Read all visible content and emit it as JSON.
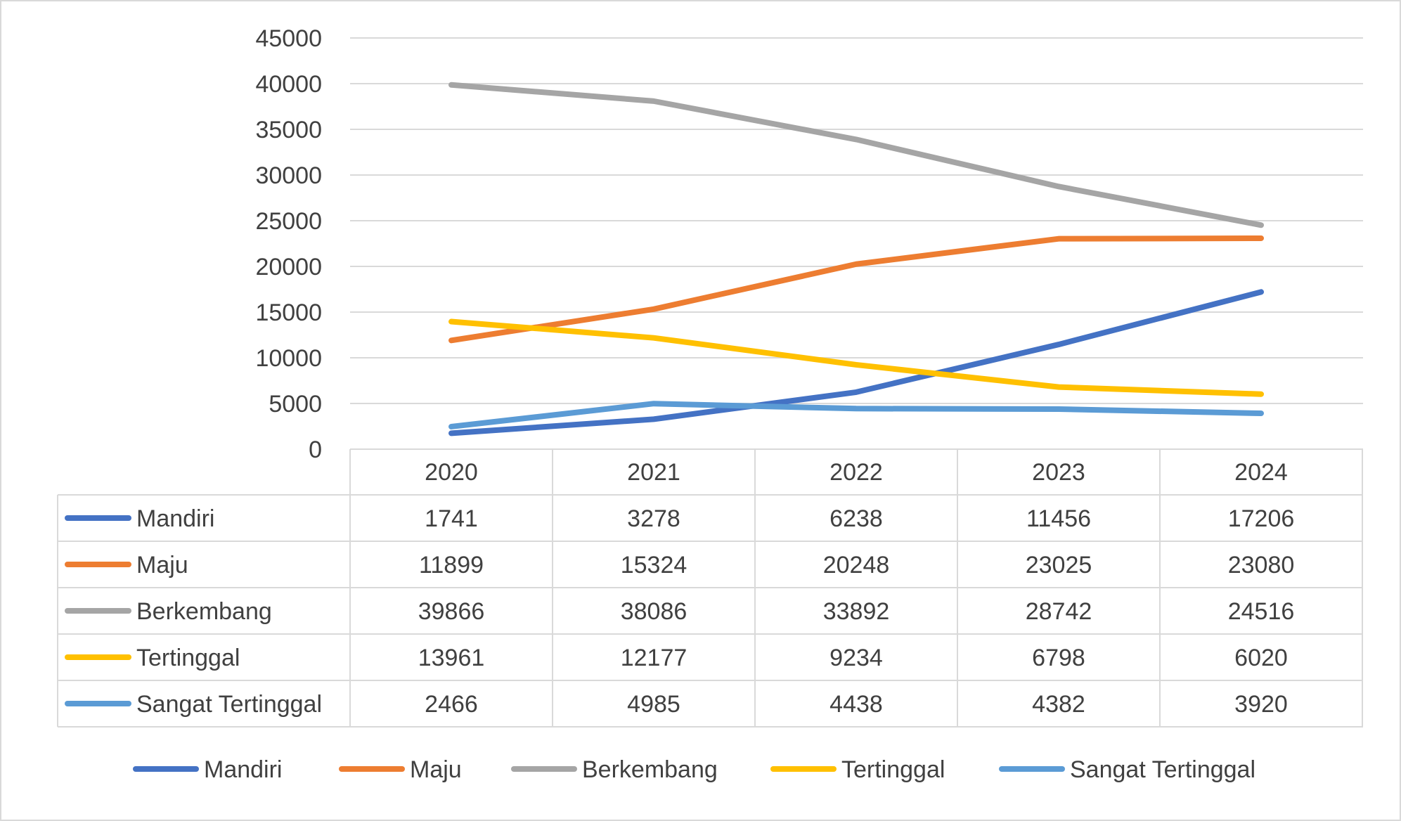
{
  "chart_data": {
    "type": "line",
    "title": "",
    "xlabel": "",
    "ylabel": "",
    "categories": [
      "2020",
      "2021",
      "2022",
      "2023",
      "2024"
    ],
    "ylim": [
      0,
      45000
    ],
    "yticks": [
      "0",
      "5000",
      "10000",
      "15000",
      "20000",
      "25000",
      "30000",
      "35000",
      "40000",
      "45000"
    ],
    "grid": true,
    "legend_position": "bottom",
    "data_table": true,
    "series": [
      {
        "name": "Mandiri",
        "color": "#4472C4",
        "values": [
          1741,
          3278,
          6238,
          11456,
          17206
        ]
      },
      {
        "name": "Maju",
        "color": "#ED7D31",
        "values": [
          11899,
          15324,
          20248,
          23025,
          23080
        ]
      },
      {
        "name": "Berkembang",
        "color": "#A5A5A5",
        "values": [
          39866,
          38086,
          33892,
          28742,
          24516
        ]
      },
      {
        "name": "Tertinggal",
        "color": "#FFC000",
        "values": [
          13961,
          12177,
          9234,
          6798,
          6020
        ]
      },
      {
        "name": "Sangat Tertinggal",
        "color": "#5B9BD5",
        "values": [
          2466,
          4985,
          4438,
          4382,
          3920
        ]
      }
    ]
  }
}
